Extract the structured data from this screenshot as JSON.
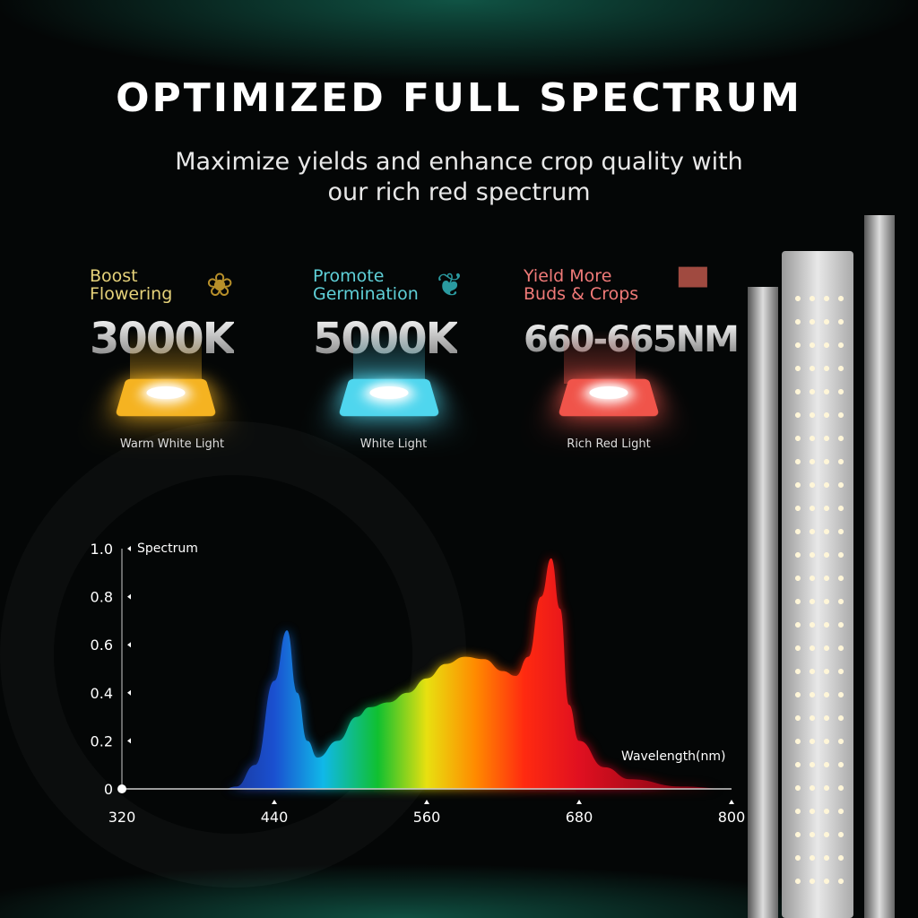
{
  "header": {
    "title": "OPTIMIZED FULL SPECTRUM",
    "subtitle_line1": "Maximize yields and enhance crop quality with",
    "subtitle_line2": "our rich red spectrum"
  },
  "features": [
    {
      "line1": "Boost",
      "line2": "Flowering",
      "value": "3000K",
      "caption": "Warm White Light",
      "icon": "tulip-icon",
      "color": "#e6d27a",
      "led": "#f5b321"
    },
    {
      "line1": "Promote",
      "line2": "Germination",
      "value": "5000K",
      "caption": "White Light",
      "icon": "sprout-icon",
      "color": "#5fd0d8",
      "led": "#4fd6ee"
    },
    {
      "line1": "Yield More",
      "line2": "Buds & Crops",
      "value": "660-665NM",
      "caption": "Rich Red Light",
      "icon": "bar-growth-icon",
      "color": "#f07a78",
      "led": "#f0544a"
    }
  ],
  "chart_data": {
    "type": "area",
    "ylabel": "Spectrum",
    "xlabel": "Wavelength(nm)",
    "xlim": [
      320,
      800
    ],
    "ylim": [
      0,
      1.0
    ],
    "xticks": [
      "320",
      "440",
      "560",
      "680",
      "800"
    ],
    "yticks": [
      "0",
      "0.2",
      "0.4",
      "0.6",
      "0.8",
      "1.0"
    ],
    "grid": false,
    "x": [
      320,
      400,
      410,
      425,
      440,
      450,
      458,
      466,
      474,
      490,
      505,
      515,
      530,
      545,
      560,
      575,
      590,
      605,
      620,
      630,
      640,
      650,
      658,
      665,
      672,
      680,
      700,
      720,
      760,
      800
    ],
    "y": [
      0,
      0,
      0.01,
      0.1,
      0.45,
      0.66,
      0.4,
      0.2,
      0.13,
      0.2,
      0.3,
      0.34,
      0.36,
      0.4,
      0.46,
      0.52,
      0.55,
      0.54,
      0.49,
      0.47,
      0.55,
      0.8,
      0.96,
      0.75,
      0.35,
      0.2,
      0.09,
      0.04,
      0.01,
      0
    ]
  }
}
